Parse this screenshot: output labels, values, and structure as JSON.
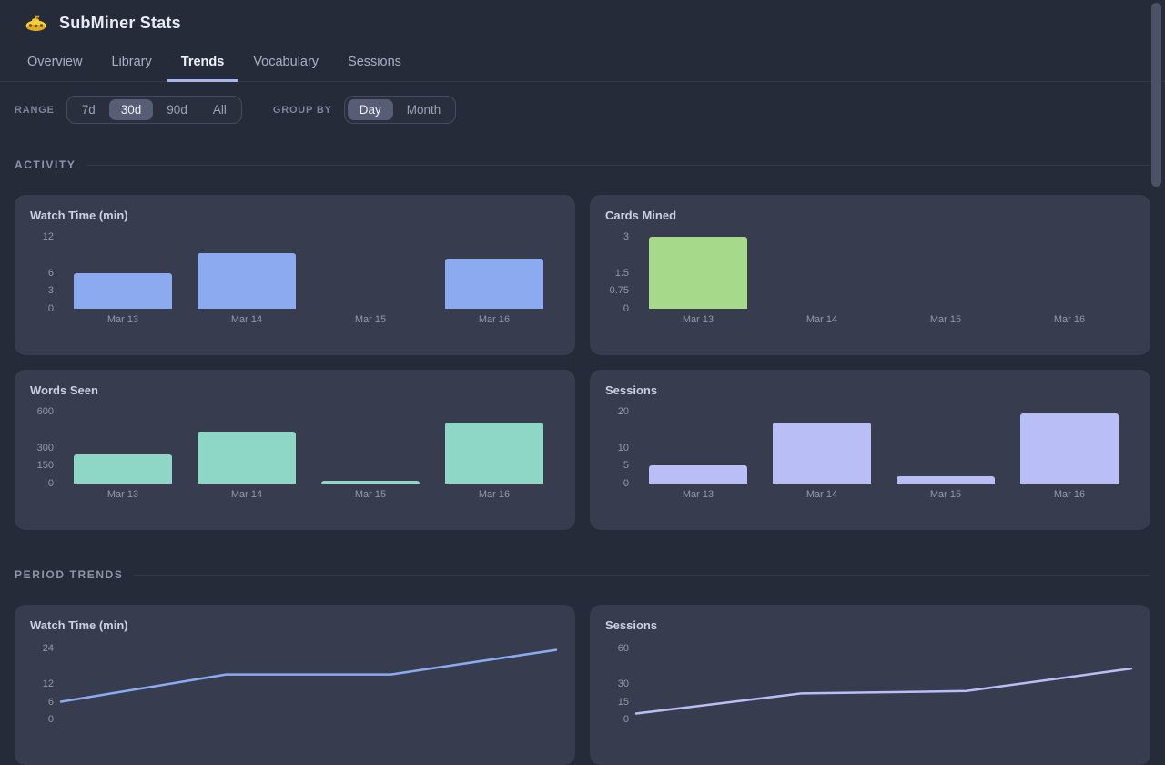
{
  "app": {
    "title": "SubMiner Stats",
    "icon": "submarine-icon",
    "accent_color": "#a9b6ec"
  },
  "tabs": [
    {
      "label": "Overview",
      "active": false
    },
    {
      "label": "Library",
      "active": false
    },
    {
      "label": "Trends",
      "active": true
    },
    {
      "label": "Vocabulary",
      "active": false
    },
    {
      "label": "Sessions",
      "active": false
    }
  ],
  "controls": {
    "range": {
      "label": "RANGE",
      "options": [
        "7d",
        "30d",
        "90d",
        "All"
      ],
      "selected": "30d"
    },
    "group_by": {
      "label": "GROUP BY",
      "options": [
        "Day",
        "Month"
      ],
      "selected": "Day"
    }
  },
  "sections": [
    {
      "title": "ACTIVITY"
    },
    {
      "title": "PERIOD TRENDS"
    }
  ],
  "chart_data": [
    {
      "type": "bar",
      "section": "ACTIVITY",
      "title": "Watch Time (min)",
      "categories": [
        "Mar 13",
        "Mar 14",
        "Mar 15",
        "Mar 16"
      ],
      "values": [
        6,
        9.2,
        0,
        8.3
      ],
      "yticks": [
        0,
        3,
        6,
        12
      ],
      "ylim": [
        0,
        12
      ],
      "color": "#8caaf0",
      "grid": false,
      "legend": "none"
    },
    {
      "type": "bar",
      "section": "ACTIVITY",
      "title": "Cards Mined",
      "categories": [
        "Mar 13",
        "Mar 14",
        "Mar 15",
        "Mar 16"
      ],
      "values": [
        3,
        0,
        0,
        0
      ],
      "yticks": [
        0,
        0.75,
        1.5,
        3
      ],
      "ylim": [
        0,
        3
      ],
      "color": "#a6da8a",
      "grid": false,
      "legend": "none"
    },
    {
      "type": "bar",
      "section": "ACTIVITY",
      "title": "Words Seen",
      "categories": [
        "Mar 13",
        "Mar 14",
        "Mar 15",
        "Mar 16"
      ],
      "values": [
        240,
        430,
        25,
        510
      ],
      "yticks": [
        0,
        150,
        300,
        600
      ],
      "ylim": [
        0,
        600
      ],
      "color": "#8ed7c6",
      "grid": false,
      "legend": "none"
    },
    {
      "type": "bar",
      "section": "ACTIVITY",
      "title": "Sessions",
      "categories": [
        "Mar 13",
        "Mar 14",
        "Mar 15",
        "Mar 16"
      ],
      "values": [
        5,
        17,
        2,
        19.5
      ],
      "yticks": [
        0,
        5,
        10,
        20
      ],
      "ylim": [
        0,
        20
      ],
      "color": "#b9bef7",
      "grid": false,
      "legend": "none"
    },
    {
      "type": "line",
      "section": "PERIOD TRENDS",
      "title": "Watch Time (min)",
      "categories": [
        "Mar 13",
        "Mar 14",
        "Mar 15",
        "Mar 16"
      ],
      "values": [
        6,
        15.2,
        15.2,
        23.5
      ],
      "yticks": [
        0,
        6,
        12,
        24
      ],
      "ylim": [
        0,
        24
      ],
      "color": "#8caaf0",
      "grid": false,
      "legend": "none"
    },
    {
      "type": "line",
      "section": "PERIOD TRENDS",
      "title": "Sessions",
      "categories": [
        "Mar 13",
        "Mar 14",
        "Mar 15",
        "Mar 16"
      ],
      "values": [
        5,
        22,
        24,
        43
      ],
      "yticks": [
        0,
        15,
        30,
        60
      ],
      "ylim": [
        0,
        60
      ],
      "color": "#b9bef7",
      "grid": false,
      "legend": "none"
    }
  ]
}
